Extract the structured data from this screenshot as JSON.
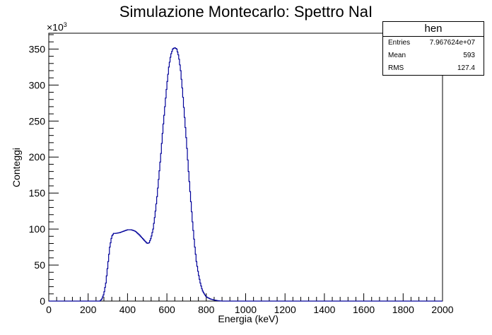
{
  "title": "Simulazione Montecarlo: Spettro NaI",
  "stats_box": {
    "name": "hen",
    "rows": [
      {
        "label": "Entries",
        "value": "7.967624e+07"
      },
      {
        "label": "Mean",
        "value": "593"
      },
      {
        "label": "RMS",
        "value": "127.4"
      }
    ]
  },
  "chart_data": {
    "type": "line",
    "title": "Simulazione Montecarlo: Spettro NaI",
    "xlabel": "Energia (keV)",
    "ylabel": "Conteggi",
    "y_multiplier_label": "×10",
    "y_multiplier_exp": "3",
    "xlim": [
      0,
      2000
    ],
    "ylim": [
      0,
      372
    ],
    "x_ticks": [
      0,
      200,
      400,
      600,
      800,
      1000,
      1200,
      1400,
      1600,
      1800,
      2000
    ],
    "y_ticks": [
      0,
      50,
      100,
      150,
      200,
      250,
      300,
      350
    ],
    "line_color": "#000099",
    "series": [
      {
        "x": [
          0,
          260,
          270,
          280,
          290,
          300,
          310,
          320,
          330,
          340,
          360,
          380,
          400,
          420,
          440,
          460,
          480,
          500,
          510,
          520,
          530,
          540,
          550,
          560,
          570,
          580,
          590,
          600,
          610,
          620,
          630,
          640,
          650,
          660,
          670,
          680,
          690,
          700,
          710,
          720,
          730,
          740,
          750,
          760,
          770,
          780,
          790,
          800,
          820,
          840,
          860,
          880,
          900,
          2000
        ],
        "y": [
          0,
          0,
          3,
          10,
          25,
          50,
          75,
          90,
          94,
          94,
          95,
          97,
          99,
          99,
          97,
          92,
          86,
          80,
          81,
          88,
          100,
          120,
          145,
          175,
          205,
          240,
          270,
          300,
          325,
          342,
          350,
          352,
          350,
          340,
          320,
          290,
          255,
          220,
          180,
          145,
          110,
          80,
          55,
          38,
          25,
          15,
          10,
          6,
          3,
          1.5,
          0.5,
          0,
          0,
          0
        ]
      }
    ]
  }
}
